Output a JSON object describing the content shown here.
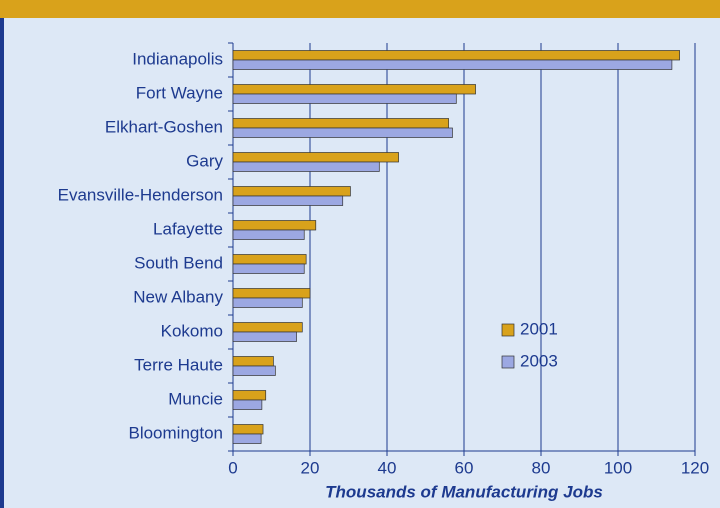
{
  "chart_data": {
    "type": "bar",
    "orientation": "horizontal",
    "x_label": "Thousands of Manufacturing Jobs",
    "categories": [
      "Indianapolis",
      "Fort Wayne",
      "Elkhart-Goshen",
      "Gary",
      "Evansville-Henderson",
      "Lafayette",
      "South Bend",
      "New Albany",
      "Kokomo",
      "Terre Haute",
      "Muncie",
      "Bloomington"
    ],
    "series": [
      {
        "name": "2001",
        "color": "#d9a21b",
        "values": [
          116,
          63,
          56,
          43,
          30.5,
          21.5,
          19,
          20,
          18,
          10.5,
          8.5,
          7.8
        ]
      },
      {
        "name": "2003",
        "color": "#9ca8e2",
        "values": [
          114,
          58,
          57,
          38,
          28.5,
          18.5,
          18.5,
          18,
          16.5,
          11,
          7.5,
          7.3
        ]
      }
    ],
    "xlim": [
      0,
      120
    ],
    "xticks": [
      0,
      20,
      40,
      60,
      80,
      100,
      120
    ],
    "grid": true,
    "legend": "lower right"
  }
}
